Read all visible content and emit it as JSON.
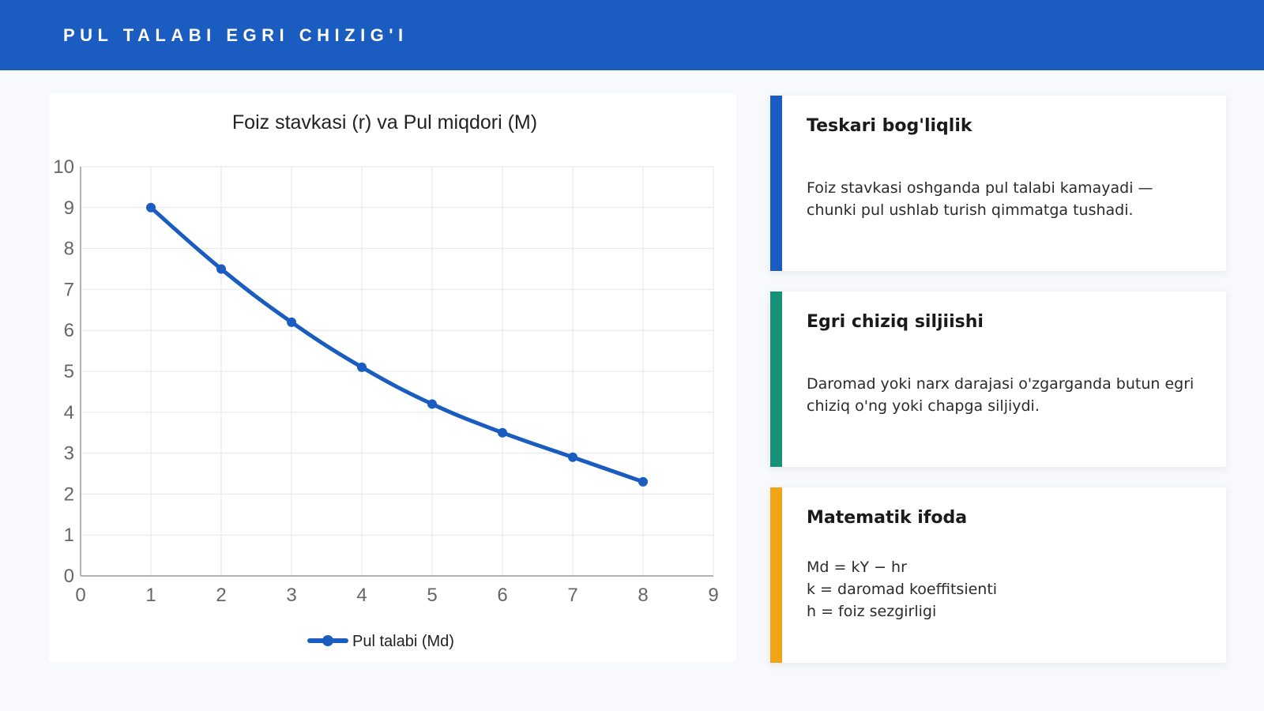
{
  "header": {
    "title": "PUL TALABI EGRI CHIZIG'I"
  },
  "colors": {
    "header_bg": "#1a5cbf",
    "line": "#1a5cbf",
    "card1_accent": "#1a5cbf",
    "card2_accent": "#169278",
    "card3_accent": "#f2a418"
  },
  "chart_data": {
    "type": "line",
    "title": "Foiz stavkasi (r) va Pul miqdori (M)",
    "xlabel": "",
    "ylabel": "",
    "xlim": [
      0,
      9
    ],
    "ylim": [
      0,
      10
    ],
    "x_ticks": [
      0,
      1,
      2,
      3,
      4,
      5,
      6,
      7,
      8,
      9
    ],
    "y_ticks": [
      0,
      1,
      2,
      3,
      4,
      5,
      6,
      7,
      8,
      9,
      10
    ],
    "grid": true,
    "legend_position": "bottom",
    "series": [
      {
        "name": "Pul talabi (Md)",
        "x": [
          1,
          2,
          3,
          4,
          5,
          6,
          7,
          8
        ],
        "y": [
          9,
          7.5,
          6.2,
          5.1,
          4.2,
          3.5,
          2.9,
          2.3
        ]
      }
    ]
  },
  "cards": [
    {
      "title": "Teskari bog'liqlik",
      "lines": [
        "Foiz stavkasi oshganda pul talabi kamayadi — chunki pul ushlab turish qimmatga tushadi."
      ]
    },
    {
      "title": "Egri chiziq siljiishi",
      "lines": [
        "Daromad yoki narx darajasi o'zgarganda butun egri chiziq o'ng yoki chapga siljiydi."
      ]
    },
    {
      "title": "Matematik ifoda",
      "lines": [
        "Md = kY − hr",
        "k = daromad koeffitsienti",
        "h = foiz sezgirligi"
      ]
    }
  ]
}
